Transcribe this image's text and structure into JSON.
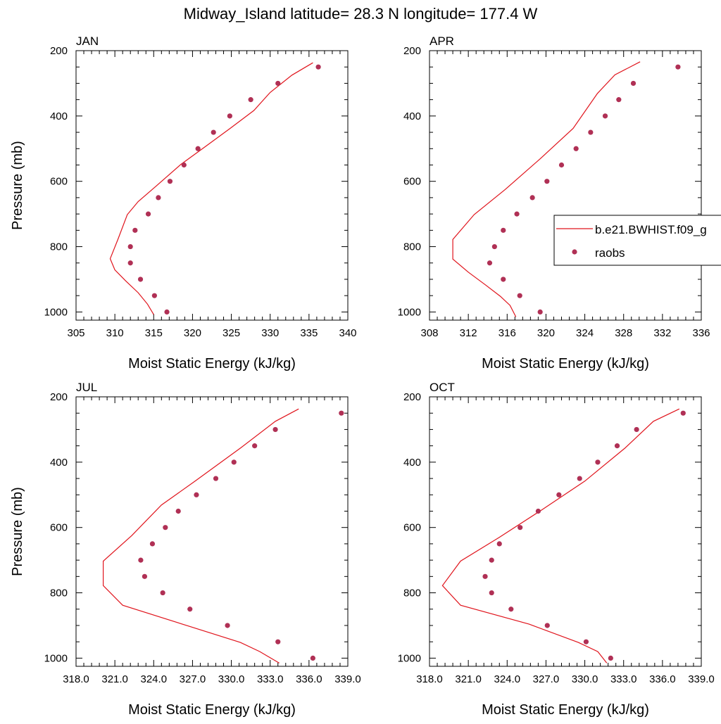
{
  "figure": {
    "title": "Midway_Island  latitude= 28.3 N longitude= 177.4 W"
  },
  "legend": {
    "placement": "right-middle of APR panel",
    "model_label": "b.e21.BWHIST.f09_g",
    "obs_label": "raobs"
  },
  "colors": {
    "model_line": "#e0141c",
    "obs_marker": "#b03055",
    "axes": "#000000"
  },
  "chart_data": [
    {
      "type": "line",
      "panel_label": "JAN",
      "xlabel": "Moist Static Energy (kJ/kg)",
      "ylabel": "Pressure (mb)",
      "xlim": [
        305,
        340
      ],
      "ylim": [
        1025,
        200
      ],
      "y_inverted": true,
      "xticks": [
        305,
        310,
        315,
        320,
        325,
        330,
        335,
        340
      ],
      "xtick_labels": [
        "305",
        "310",
        "315",
        "320",
        "325",
        "330",
        "335",
        "340"
      ],
      "yticks": [
        200,
        400,
        600,
        800,
        1000
      ],
      "ytick_labels": [
        "200",
        "400",
        "600",
        "800",
        "1000"
      ],
      "series": [
        {
          "name": "b.e21.BWHIST.f09_g",
          "kind": "line",
          "x": [
            315.0,
            314.2,
            313.0,
            311.4,
            310.0,
            309.4,
            310.4,
            311.6,
            313.0,
            315.2,
            318.5,
            321.8,
            324.9,
            327.9,
            330.0,
            332.8,
            335.5
          ],
          "y": [
            1008,
            976,
            941,
            905,
            871,
            837,
            777,
            702,
            662,
            617,
            548,
            491,
            437,
            383,
            328,
            275,
            237
          ]
        },
        {
          "name": "raobs",
          "kind": "marker",
          "x": [
            316.7,
            315.1,
            313.3,
            312.0,
            312.0,
            312.6,
            314.3,
            315.6,
            317.1,
            318.9,
            320.7,
            322.7,
            324.8,
            327.5,
            331.0,
            336.2
          ],
          "y": [
            1000,
            950,
            900,
            850,
            800,
            750,
            700,
            650,
            600,
            550,
            500,
            450,
            400,
            350,
            300,
            250
          ]
        }
      ]
    },
    {
      "type": "line",
      "panel_label": "APR",
      "xlabel": "Moist Static Energy (kJ/kg)",
      "ylabel": "",
      "xlim": [
        308,
        336
      ],
      "ylim": [
        1025,
        200
      ],
      "y_inverted": true,
      "xticks": [
        308,
        312,
        316,
        320,
        324,
        328,
        332,
        336
      ],
      "xtick_labels": [
        "308",
        "312",
        "316",
        "320",
        "324",
        "328",
        "332",
        "336"
      ],
      "yticks": [
        200,
        400,
        600,
        800,
        1000
      ],
      "ytick_labels": [
        "200",
        "400",
        "600",
        "800",
        "1000"
      ],
      "series": [
        {
          "name": "b.e21.BWHIST.f09_g",
          "kind": "line",
          "x": [
            316.9,
            316.3,
            315.3,
            313.8,
            312.0,
            310.4,
            310.4,
            312.6,
            315.8,
            319.4,
            322.8,
            325.3,
            327.1,
            329.7
          ],
          "y": [
            1015,
            980,
            952,
            918,
            878,
            838,
            778,
            702,
            625,
            531,
            438,
            331,
            274,
            234
          ]
        },
        {
          "name": "raobs",
          "kind": "marker",
          "x": [
            319.4,
            317.3,
            315.6,
            314.2,
            314.7,
            315.6,
            317.0,
            318.6,
            320.1,
            321.6,
            323.1,
            324.6,
            326.1,
            327.5,
            329.0,
            333.6
          ],
          "y": [
            1000,
            950,
            900,
            850,
            800,
            750,
            700,
            650,
            600,
            550,
            500,
            450,
            400,
            350,
            300,
            250
          ]
        }
      ]
    },
    {
      "type": "line",
      "panel_label": "JUL",
      "xlabel": "Moist Static Energy (kJ/kg)",
      "ylabel": "Pressure (mb)",
      "xlim": [
        318,
        339
      ],
      "ylim": [
        1025,
        200
      ],
      "y_inverted": true,
      "xticks": [
        318,
        321,
        324,
        327,
        330,
        333,
        336,
        339
      ],
      "xtick_labels": [
        "318.0",
        "321.0",
        "324.0",
        "327.0",
        "330.0",
        "333.0",
        "336.0",
        "339.0"
      ],
      "yticks": [
        200,
        400,
        600,
        800,
        1000
      ],
      "ytick_labels": [
        "200",
        "400",
        "600",
        "800",
        "1000"
      ],
      "series": [
        {
          "name": "b.e21.BWHIST.f09_g",
          "kind": "line",
          "x": [
            333.7,
            332.2,
            330.7,
            321.6,
            320.1,
            320.1,
            322.3,
            324.6,
            327.2,
            330.7,
            333.4,
            335.2
          ],
          "y": [
            1015,
            980,
            952,
            838,
            778,
            703,
            625,
            531,
            458,
            357,
            275,
            237
          ]
        },
        {
          "name": "raobs",
          "kind": "marker",
          "x": [
            336.3,
            333.6,
            329.7,
            326.8,
            324.7,
            323.3,
            323.0,
            323.9,
            324.9,
            325.9,
            327.3,
            328.8,
            330.2,
            331.8,
            333.4,
            338.5
          ],
          "y": [
            1000,
            950,
            900,
            850,
            800,
            750,
            700,
            650,
            600,
            550,
            500,
            450,
            400,
            350,
            300,
            250
          ]
        }
      ]
    },
    {
      "type": "line",
      "panel_label": "OCT",
      "xlabel": "Moist Static Energy (kJ/kg)",
      "ylabel": "",
      "xlim": [
        318,
        339
      ],
      "ylim": [
        1025,
        200
      ],
      "y_inverted": true,
      "xticks": [
        318,
        321,
        324,
        327,
        330,
        333,
        336,
        339
      ],
      "xtick_labels": [
        "318.0",
        "321.0",
        "324.0",
        "327.0",
        "330.0",
        "333.0",
        "336.0",
        "339.0"
      ],
      "yticks": [
        200,
        400,
        600,
        800,
        1000
      ],
      "ytick_labels": [
        "200",
        "400",
        "600",
        "800",
        "1000"
      ],
      "series": [
        {
          "name": "b.e21.BWHIST.f09_g",
          "kind": "line",
          "x": [
            331.7,
            331.0,
            329.5,
            325.7,
            320.4,
            319.0,
            320.4,
            323.4,
            326.6,
            330.0,
            333.1,
            335.3,
            337.3
          ],
          "y": [
            1015,
            980,
            952,
            896,
            838,
            778,
            703,
            630,
            548,
            458,
            357,
            275,
            237
          ]
        },
        {
          "name": "raobs",
          "kind": "marker",
          "x": [
            332.0,
            330.1,
            327.1,
            324.3,
            322.8,
            322.3,
            322.8,
            323.4,
            325.0,
            326.4,
            328.0,
            329.6,
            331.0,
            332.5,
            334.0,
            337.6
          ],
          "y": [
            1000,
            950,
            900,
            850,
            800,
            750,
            700,
            650,
            600,
            550,
            500,
            450,
            400,
            350,
            300,
            250
          ]
        }
      ]
    }
  ]
}
